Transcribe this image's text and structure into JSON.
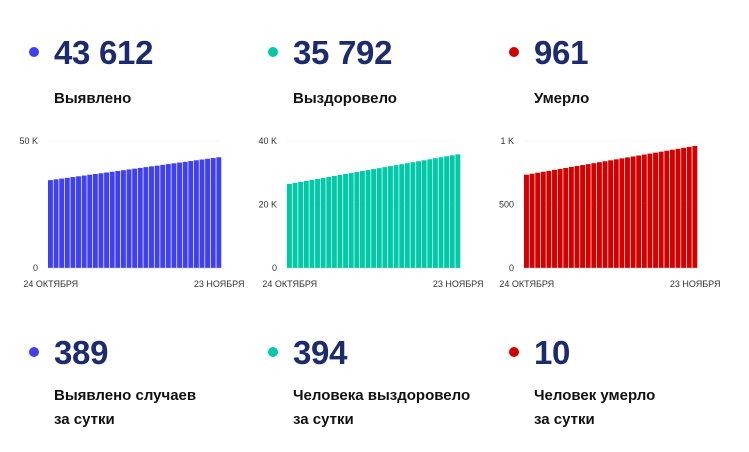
{
  "colors": {
    "detected": "#4040ee",
    "recovered": "#00c9a7",
    "deaths": "#d30000",
    "number": "#1c2a6e"
  },
  "top_stats": [
    {
      "value": "43 612",
      "label": "Выявлено"
    },
    {
      "value": "35 792",
      "label": "Выздоровело"
    },
    {
      "value": "961",
      "label": "Умерло"
    }
  ],
  "bottom_stats": [
    {
      "value": "389",
      "label_line1": "Выявлено случаев",
      "label_line2": "за сутки"
    },
    {
      "value": "394",
      "label_line1": "Человека выздоровело",
      "label_line2": "за сутки"
    },
    {
      "value": "10",
      "label_line1": "Человек умерло",
      "label_line2": "за сутки"
    }
  ],
  "chart_data": [
    {
      "type": "bar",
      "ylim": [
        0,
        50000
      ],
      "y_ticks": [
        0,
        50000
      ],
      "y_tick_labels": [
        "0",
        "50 K"
      ],
      "x_tick_labels": [
        "24 ОКТЯБРЯ",
        "23 НОЯБРЯ"
      ],
      "start": 34600,
      "end": 43612,
      "bar_count": 31,
      "color": "#4040ee"
    },
    {
      "type": "bar",
      "ylim": [
        0,
        40000
      ],
      "y_ticks": [
        0,
        20000,
        40000
      ],
      "y_tick_labels": [
        "0",
        "20 K",
        "40 K"
      ],
      "x_tick_labels": [
        "24 ОКТЯБРЯ",
        "23 НОЯБРЯ"
      ],
      "start": 26500,
      "end": 35792,
      "bar_count": 31,
      "color": "#00c9a7"
    },
    {
      "type": "bar",
      "ylim": [
        0,
        1000
      ],
      "y_ticks": [
        0,
        500,
        1000
      ],
      "y_tick_labels": [
        "0",
        "500",
        "1 K"
      ],
      "x_tick_labels": [
        "24 ОКТЯБРЯ",
        "23 НОЯБРЯ"
      ],
      "start": 735,
      "end": 961,
      "bar_count": 31,
      "color": "#d30000"
    }
  ]
}
